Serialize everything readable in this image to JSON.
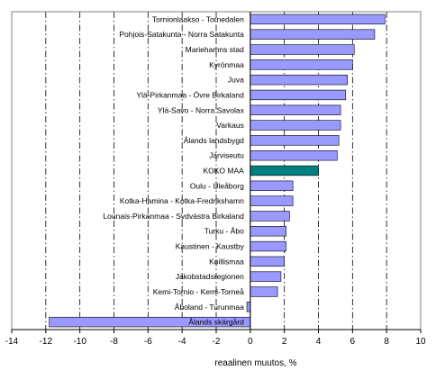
{
  "chart_data": {
    "type": "bar",
    "orientation": "horizontal",
    "title": "",
    "xlabel": "reaalinen muutos, %",
    "ylabel": "",
    "xlim": [
      -14,
      10
    ],
    "xticks": [
      -14,
      -12,
      -10,
      -8,
      -6,
      -4,
      -2,
      0,
      2,
      4,
      6,
      8,
      10
    ],
    "grid": "vertical dash-dot gridlines at even ticks",
    "legend": "none",
    "colors": {
      "bar": "#9999ff",
      "highlight": "#008080",
      "grid": "#000000",
      "text": "#000000"
    },
    "highlight_category": "KOKO MAA",
    "categories": [
      "Tornionlaakso - Tornedalen",
      "Pohjois-Satakunta - Norra Satakunta",
      "Mariehamns stad",
      "Kyrönmaa",
      "Juva",
      "Ylä-Pirkanmaa - Övre Birkaland",
      "Ylä-Savo - Norra Savolax",
      "Varkaus",
      "Ålands landsbygd",
      "Järviseutu",
      "KOKO MAA",
      "Oulu - Uleåborg",
      "Kotka-Hamina - Kotka-Fredrikshamn",
      "Lounais-Pirkanmaa - Sydvästra Birkaland",
      "Turku - Åbo",
      "Kaustinen - Kaustby",
      "Koillismaa",
      "Jakobstadsregionen",
      "Kemi-Tornio - Kemi-Torneå",
      "Åboland - Turunmaa",
      "Ålands skärgård"
    ],
    "values": [
      7.9,
      7.3,
      6.1,
      6.0,
      5.7,
      5.6,
      5.3,
      5.3,
      5.2,
      5.1,
      4.0,
      2.5,
      2.5,
      2.3,
      2.1,
      2.1,
      2.0,
      1.8,
      1.6,
      -0.2,
      -11.8
    ]
  }
}
